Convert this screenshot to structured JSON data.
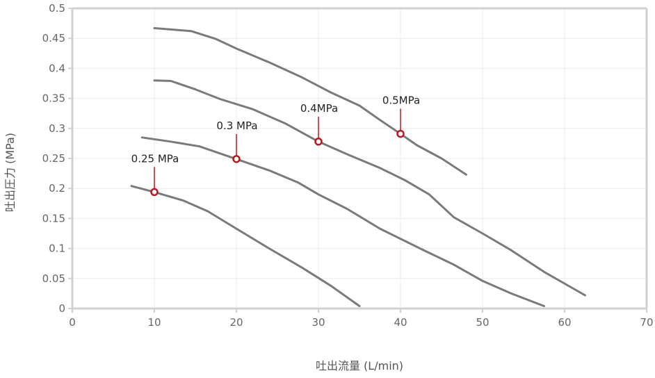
{
  "chart_data": {
    "type": "line",
    "title": "",
    "xlabel": "吐出流量 (L/min)",
    "ylabel": "吐出圧力 (MPa)",
    "xlim": [
      0,
      70
    ],
    "ylim": [
      0,
      0.5
    ],
    "x_ticks": [
      "0",
      "10",
      "20",
      "30",
      "40",
      "50",
      "60",
      "70"
    ],
    "y_ticks": [
      "0",
      "0.05",
      "0.1",
      "0.15",
      "0.2",
      "0.25",
      "0.3",
      "0.35",
      "0.4",
      "0.45",
      "0.5"
    ],
    "grid": true,
    "series": [
      {
        "points": [
          [
            7.2,
            0.204
          ],
          [
            10,
            0.194
          ],
          [
            13.5,
            0.18
          ],
          [
            16.5,
            0.162
          ],
          [
            20,
            0.133
          ],
          [
            24,
            0.1
          ],
          [
            28,
            0.068
          ],
          [
            31.5,
            0.038
          ],
          [
            35,
            0.004
          ]
        ]
      },
      {
        "points": [
          [
            8.5,
            0.285
          ],
          [
            12,
            0.278
          ],
          [
            15.5,
            0.27
          ],
          [
            20,
            0.249
          ],
          [
            24,
            0.23
          ],
          [
            27.5,
            0.21
          ],
          [
            30,
            0.19
          ],
          [
            33.5,
            0.166
          ],
          [
            37.5,
            0.133
          ],
          [
            43,
            0.096
          ],
          [
            46.5,
            0.073
          ],
          [
            50,
            0.046
          ],
          [
            53.5,
            0.025
          ],
          [
            57.5,
            0.004
          ]
        ]
      },
      {
        "points": [
          [
            10,
            0.38
          ],
          [
            12,
            0.379
          ],
          [
            15,
            0.365
          ],
          [
            18,
            0.349
          ],
          [
            22,
            0.332
          ],
          [
            26,
            0.308
          ],
          [
            30,
            0.278
          ],
          [
            33.5,
            0.257
          ],
          [
            37.5,
            0.234
          ],
          [
            40.5,
            0.214
          ],
          [
            43.5,
            0.19
          ],
          [
            46.5,
            0.152
          ],
          [
            50,
            0.125
          ],
          [
            53.5,
            0.097
          ],
          [
            57.5,
            0.061
          ],
          [
            62.5,
            0.022
          ]
        ]
      },
      {
        "points": [
          [
            10,
            0.467
          ],
          [
            14.5,
            0.462
          ],
          [
            17.5,
            0.449
          ],
          [
            20,
            0.433
          ],
          [
            24,
            0.41
          ],
          [
            28,
            0.385
          ],
          [
            31.5,
            0.36
          ],
          [
            35,
            0.338
          ],
          [
            37.5,
            0.314
          ],
          [
            40,
            0.291
          ],
          [
            42,
            0.272
          ],
          [
            45,
            0.25
          ],
          [
            48,
            0.223
          ]
        ]
      }
    ],
    "annotations": [
      {
        "label": "0.25 MPa",
        "x": 10,
        "y": 0.194
      },
      {
        "label": "0.3 MPa",
        "x": 20,
        "y": 0.249
      },
      {
        "label": "0.4MPa",
        "x": 30,
        "y": 0.278
      },
      {
        "label": "0.5MPa",
        "x": 40,
        "y": 0.291
      }
    ],
    "colors": {
      "line": "#7a7a7a",
      "marker": "#c0141e",
      "axis": "#d0d0d0",
      "grid": "#ebebeb",
      "tick_text": "#666666",
      "label_text": "#222222"
    }
  }
}
